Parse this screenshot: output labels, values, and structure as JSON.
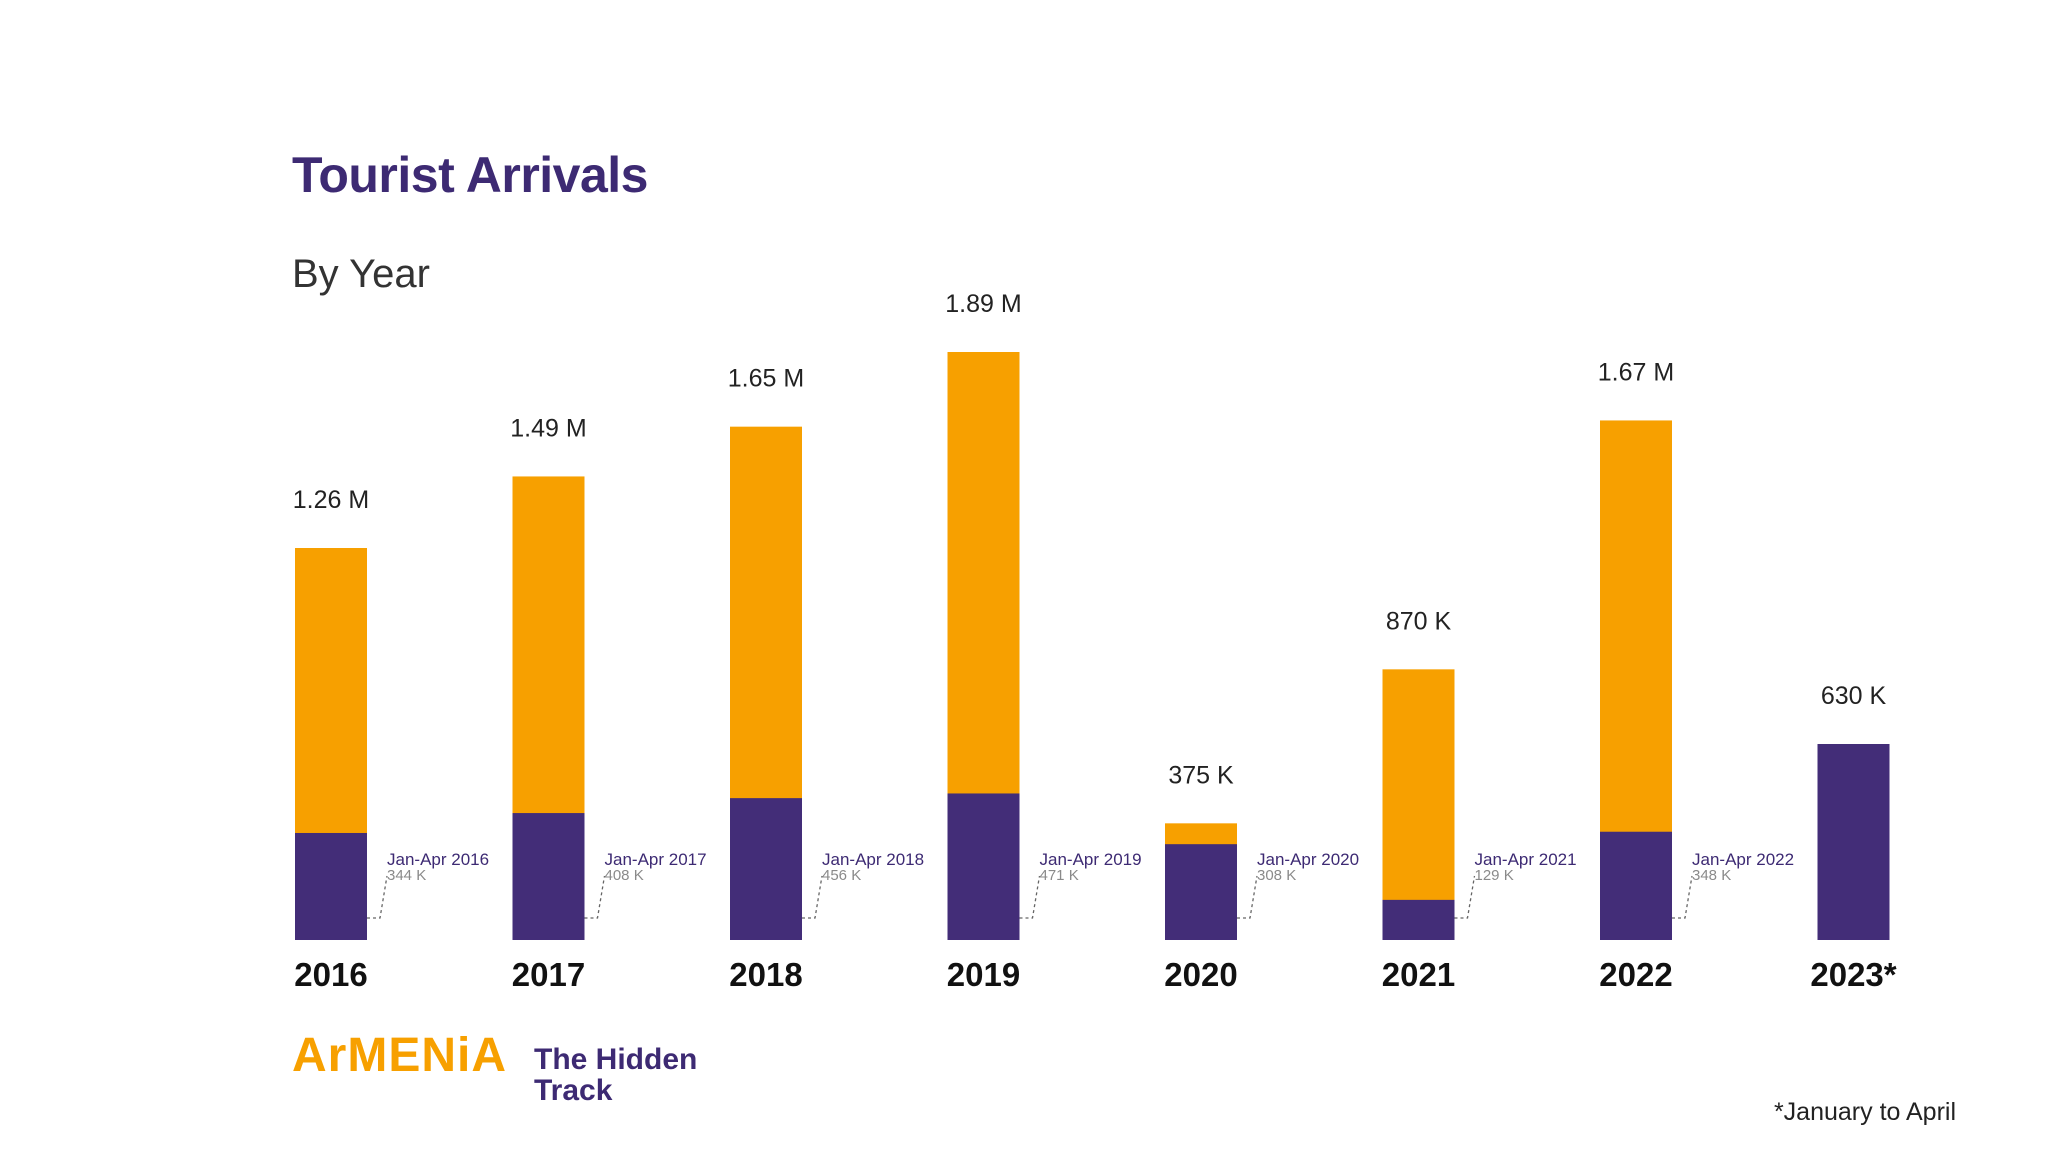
{
  "brand": {
    "name": "ArMENiA",
    "tagline": "The Hidden Track"
  },
  "footnote": "*January to April",
  "colors": {
    "annual": "#f7a000",
    "jan_apr": "#432d78",
    "title": "#3d2a73"
  },
  "chart_data": {
    "type": "bar",
    "title": "Tourist Arrivals",
    "subtitle": "By Year",
    "xlabel": "",
    "ylabel": "",
    "categories": [
      "2016",
      "2017",
      "2018",
      "2019",
      "2020",
      "2021",
      "2022",
      "2023*"
    ],
    "series": [
      {
        "values": [
          344,
          408,
          456,
          471,
          308,
          129,
          348,
          630
        ],
        "labels": [
          "344 K",
          "408 K",
          "456 K",
          "471 K",
          "308 K",
          "129 K",
          "348 K",
          null
        ],
        "period_labels": [
          "Jan-Apr 2016",
          "Jan-Apr 2017",
          "Jan-Apr 2018",
          "Jan-Apr 2019",
          "Jan-Apr 2020",
          "Jan-Apr 2021",
          "Jan-Apr 2022",
          null
        ]
      },
      {
        "values": [
          1260,
          1490,
          1650,
          1890,
          375,
          870,
          1670,
          null
        ],
        "labels": [
          "1.26 M",
          "1.49 M",
          "1.65 M",
          "1.89 M",
          "375 K",
          "870 K",
          "1.67 M",
          null
        ]
      }
    ],
    "totals": [
      "1.26 M",
      "1.49 M",
      "1.65 M",
      "1.89 M",
      "375 K",
      "870 K",
      "1.67 M",
      "630 K"
    ],
    "units": "thousands",
    "ylim": [
      0,
      1890
    ],
    "grid": false,
    "legend": "none"
  }
}
